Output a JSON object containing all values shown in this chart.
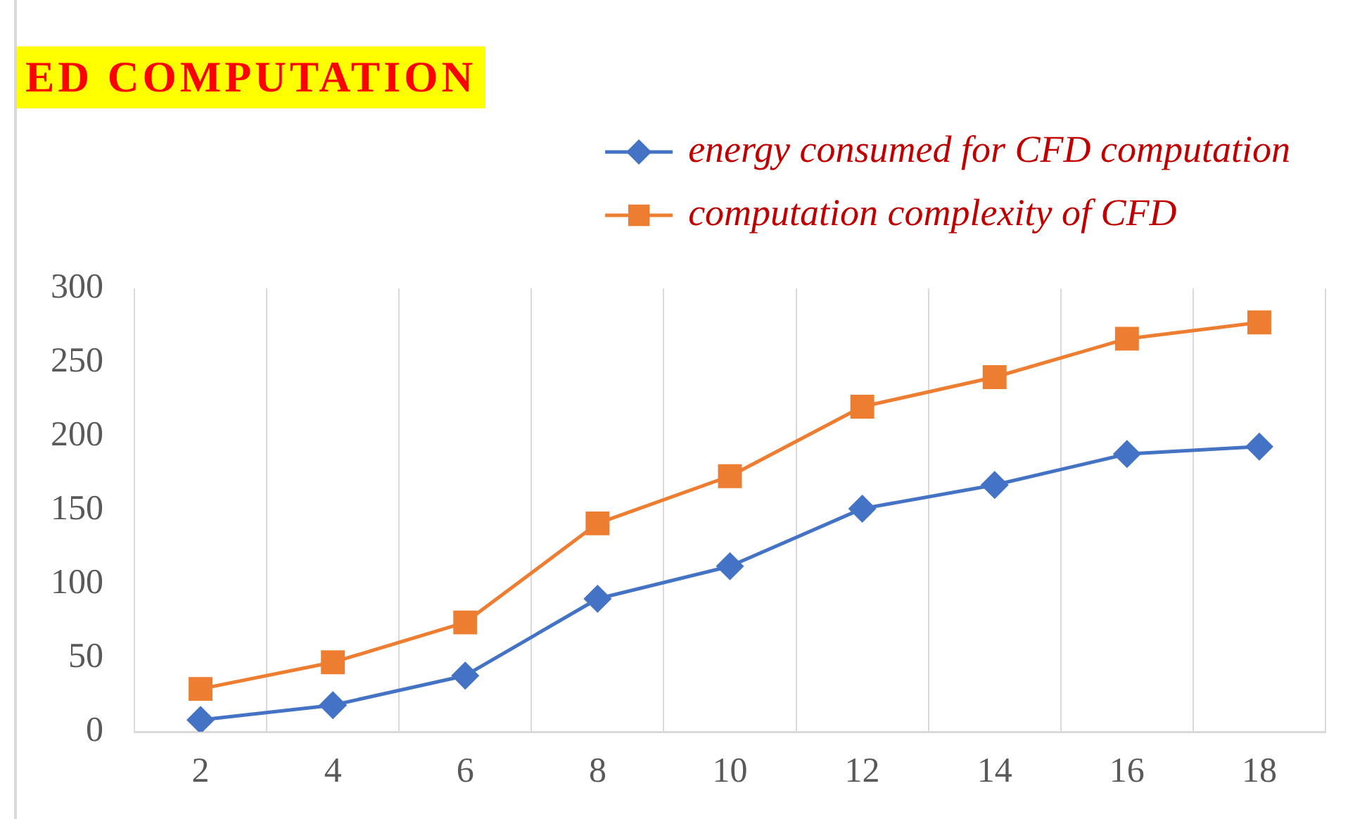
{
  "chart_data": {
    "type": "line",
    "title": "ED COMPUTATION",
    "categories": [
      "2",
      "4",
      "6",
      "8",
      "10",
      "12",
      "14",
      "16",
      "18"
    ],
    "series": [
      {
        "name": "energy consumed for CFD computation",
        "color": "#4472c4",
        "marker": "diamond",
        "values": [
          8,
          18,
          38,
          90,
          112,
          151,
          167,
          188,
          193
        ]
      },
      {
        "name": "computation complexity of CFD",
        "color": "#ed7d31",
        "marker": "square",
        "values": [
          29,
          47,
          74,
          141,
          173,
          220,
          240,
          266,
          277
        ]
      }
    ],
    "ylim": [
      0,
      300
    ],
    "yticks": [
      0,
      50,
      100,
      150,
      200,
      250,
      300
    ],
    "grid": "x",
    "legend": "top right"
  }
}
